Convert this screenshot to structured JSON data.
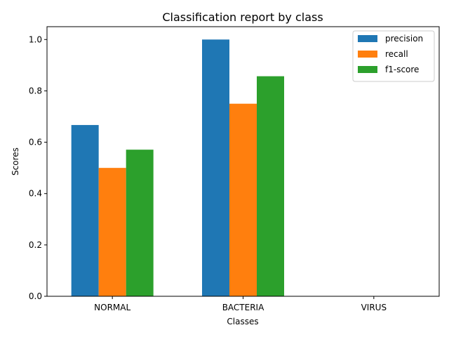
{
  "chart_data": {
    "type": "bar",
    "title": "Classification report by class",
    "xlabel": "Classes",
    "ylabel": "Scores",
    "categories": [
      "NORMAL",
      "BACTERIA",
      "VIRUS"
    ],
    "series": [
      {
        "name": "precision",
        "values": [
          0.667,
          1.0,
          0.0
        ],
        "color": "#1f77b4"
      },
      {
        "name": "recall",
        "values": [
          0.5,
          0.75,
          0.0
        ],
        "color": "#ff7f0e"
      },
      {
        "name": "f1-score",
        "values": [
          0.571,
          0.857,
          0.0
        ],
        "color": "#2ca02c"
      }
    ],
    "ylim": [
      0,
      1.05
    ],
    "yticks": [
      "0.0",
      "0.2",
      "0.4",
      "0.6",
      "0.8",
      "1.0"
    ],
    "grid": false,
    "legend_position": "top-right"
  }
}
